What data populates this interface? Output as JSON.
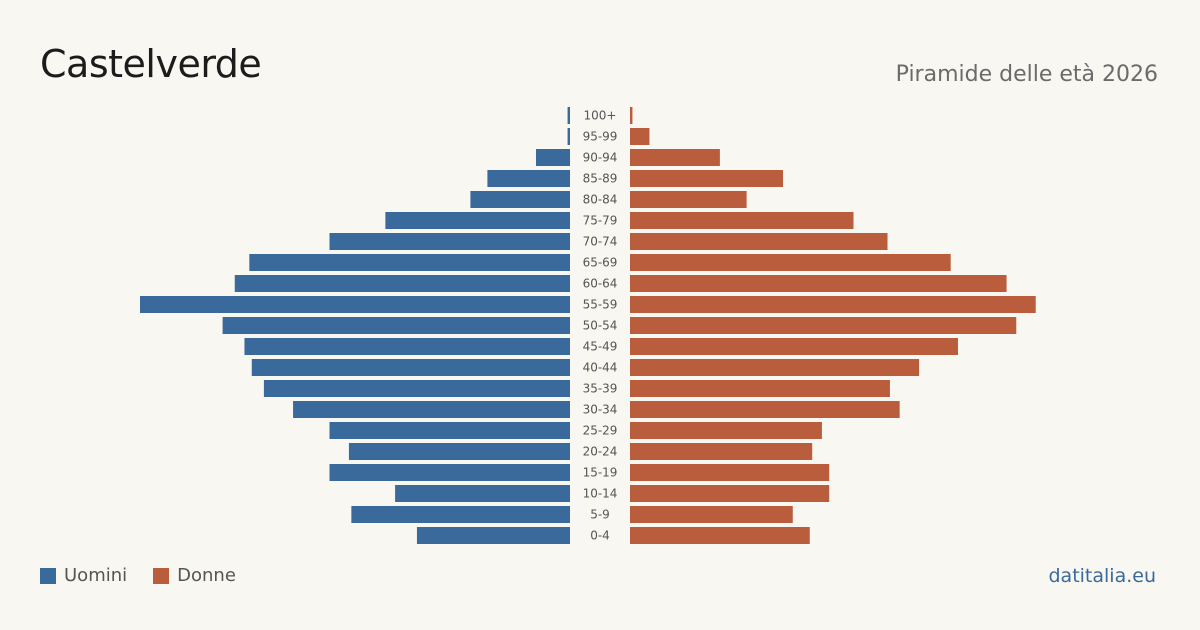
{
  "header": {
    "title": "Castelverde",
    "subtitle": "Piramide delle età 2026"
  },
  "legend": {
    "men_label": "Uomini",
    "women_label": "Donne"
  },
  "footer": {
    "credit": "datitalia.eu"
  },
  "colors": {
    "men": "#3a6a9c",
    "women": "#b95d3d",
    "credit": "#3a6a9c"
  },
  "chart_data": {
    "type": "bar",
    "orientation": "horizontal-population-pyramid",
    "categories": [
      "100+",
      "95-99",
      "90-94",
      "85-89",
      "80-84",
      "75-79",
      "70-74",
      "65-69",
      "60-64",
      "55-59",
      "50-54",
      "45-49",
      "40-44",
      "35-39",
      "30-34",
      "25-29",
      "20-24",
      "15-19",
      "10-14",
      "5-9",
      "0-4"
    ],
    "series": [
      {
        "name": "Uomini",
        "values": [
          1,
          1,
          14,
          34,
          41,
          76,
          99,
          132,
          138,
          177,
          143,
          134,
          131,
          126,
          114,
          99,
          91,
          99,
          72,
          90,
          63
        ]
      },
      {
        "name": "Donne",
        "values": [
          1,
          8,
          37,
          63,
          48,
          92,
          106,
          132,
          155,
          167,
          159,
          135,
          119,
          107,
          111,
          79,
          75,
          82,
          82,
          67,
          74
        ]
      }
    ],
    "grid": false,
    "legend_position": "bottom-left"
  }
}
